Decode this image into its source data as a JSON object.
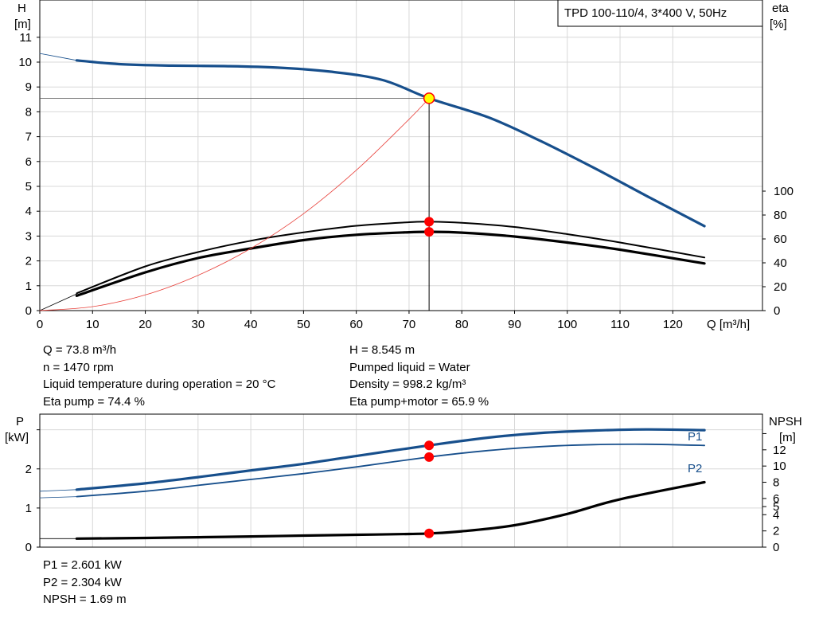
{
  "pump_label": "TPD 100-110/4, 3*400 V, 50Hz",
  "colors": {
    "blue": "#174f8c",
    "black": "#000000",
    "system": "#e8403a",
    "marker": "#ff0000",
    "duty": "#ffff00",
    "grid": "#d8d8d8"
  },
  "chart_data": [
    {
      "type": "line",
      "id": "qh",
      "xlabel": "Q [m³/h]",
      "ylabel_left": [
        "H",
        "[m]"
      ],
      "ylabel_right": [
        "eta",
        "[%]"
      ],
      "xlim": [
        0,
        137
      ],
      "ylim_left": [
        0,
        12.5
      ],
      "ylim_right": [
        0,
        100
      ],
      "x_ticks": [
        0,
        10,
        20,
        30,
        40,
        50,
        60,
        70,
        80,
        90,
        100,
        110,
        120
      ],
      "y_ticks_left": [
        0,
        1,
        2,
        3,
        4,
        5,
        6,
        7,
        8,
        9,
        10,
        11
      ],
      "y_ticks_right": [
        0,
        20,
        40,
        60,
        80,
        100
      ],
      "grid": true,
      "series": [
        {
          "key": "H",
          "axis": "left",
          "x": [
            7,
            15,
            25,
            35,
            45,
            55,
            65,
            73.8,
            85,
            95,
            105,
            115,
            126
          ],
          "y": [
            10.07,
            9.92,
            9.86,
            9.84,
            9.78,
            9.62,
            9.28,
            8.545,
            7.78,
            6.82,
            5.75,
            4.62,
            3.4
          ]
        },
        {
          "key": "H_ext",
          "axis": "left",
          "x": [
            0,
            7
          ],
          "y": [
            10.35,
            10.07
          ]
        },
        {
          "key": "eta_pump",
          "axis": "right",
          "x": [
            7,
            20,
            30,
            40,
            50,
            60,
            70,
            73.8,
            80,
            90,
            100,
            110,
            126
          ],
          "y": [
            14.5,
            37,
            49,
            58.5,
            65.5,
            71,
            74,
            74.4,
            73.5,
            70,
            64,
            57,
            44.5
          ]
        },
        {
          "key": "eta_total",
          "axis": "right",
          "x": [
            7,
            20,
            30,
            40,
            50,
            60,
            70,
            73.8,
            80,
            90,
            100,
            110,
            126
          ],
          "y": [
            12.5,
            32,
            44,
            52,
            59,
            63.5,
            65.6,
            65.9,
            65.3,
            62,
            57,
            51,
            39.5
          ]
        },
        {
          "key": "eta_ext",
          "axis": "right",
          "x": [
            0,
            7
          ],
          "y": [
            0,
            14
          ]
        },
        {
          "key": "system",
          "axis": "left",
          "x": [
            0,
            10,
            20,
            30,
            40,
            50,
            60,
            70,
            73.8
          ],
          "y": [
            0,
            0.16,
            0.63,
            1.42,
            2.5,
            3.9,
            5.65,
            7.7,
            8.545
          ]
        }
      ],
      "duty": {
        "x": 73.8,
        "H": 8.545,
        "eta_pump": 74.4,
        "eta_total": 65.9
      }
    },
    {
      "type": "line",
      "id": "power",
      "ylabel_left": [
        "P",
        "[kW]"
      ],
      "ylabel_right": [
        "NPSH",
        "[m]"
      ],
      "xlim": [
        0,
        137
      ],
      "ylim_left": [
        0,
        3.4
      ],
      "ylim_right": [
        0,
        16.4
      ],
      "y_ticks_left": [
        0,
        1,
        2
      ],
      "y_ticks_right": [
        0,
        2,
        4,
        5,
        6,
        8,
        10,
        12
      ],
      "grid": true,
      "series": [
        {
          "key": "P1",
          "name": "P1",
          "axis": "left",
          "x": [
            7,
            20,
            30,
            40,
            50,
            60,
            73.8,
            85,
            95,
            105,
            115,
            126
          ],
          "y": [
            1.47,
            1.63,
            1.79,
            1.96,
            2.13,
            2.33,
            2.601,
            2.8,
            2.92,
            2.98,
            3.01,
            2.99
          ]
        },
        {
          "key": "P2",
          "name": "P2",
          "axis": "left",
          "x": [
            7,
            20,
            30,
            40,
            50,
            60,
            73.8,
            85,
            95,
            105,
            115,
            126
          ],
          "y": [
            1.29,
            1.43,
            1.58,
            1.73,
            1.88,
            2.05,
            2.304,
            2.47,
            2.57,
            2.62,
            2.63,
            2.6
          ]
        },
        {
          "key": "NPSH",
          "axis": "right",
          "x": [
            7,
            20,
            30,
            40,
            50,
            60,
            70,
            73.8,
            80,
            90,
            100,
            110,
            126
          ],
          "y": [
            1.05,
            1.13,
            1.22,
            1.32,
            1.42,
            1.52,
            1.62,
            1.69,
            1.95,
            2.7,
            4.1,
            5.9,
            8.0
          ]
        },
        {
          "key": "P1_ext",
          "axis": "left",
          "x": [
            0,
            7
          ],
          "y": [
            1.43,
            1.47
          ]
        },
        {
          "key": "P2_ext",
          "axis": "left",
          "x": [
            0,
            7
          ],
          "y": [
            1.26,
            1.29
          ]
        },
        {
          "key": "NPSH_ext",
          "axis": "right",
          "x": [
            0,
            7
          ],
          "y": [
            1.05,
            1.05
          ]
        }
      ],
      "duty": {
        "x": 73.8,
        "P1": 2.601,
        "P2": 2.304,
        "NPSH": 1.69
      }
    }
  ],
  "results_left": [
    "Q = 73.8 m³/h",
    "n = 1470 rpm",
    "Liquid temperature during operation = 20 °C",
    "Eta pump = 74.4 %"
  ],
  "results_right": [
    "H = 8.545 m",
    "Pumped liquid = Water",
    "Density = 998.2 kg/m³",
    "Eta pump+motor = 65.9 %"
  ],
  "results_bottom": [
    "P1 = 2.601 kW",
    "P2 = 2.304 kW",
    "NPSH = 1.69 m"
  ]
}
